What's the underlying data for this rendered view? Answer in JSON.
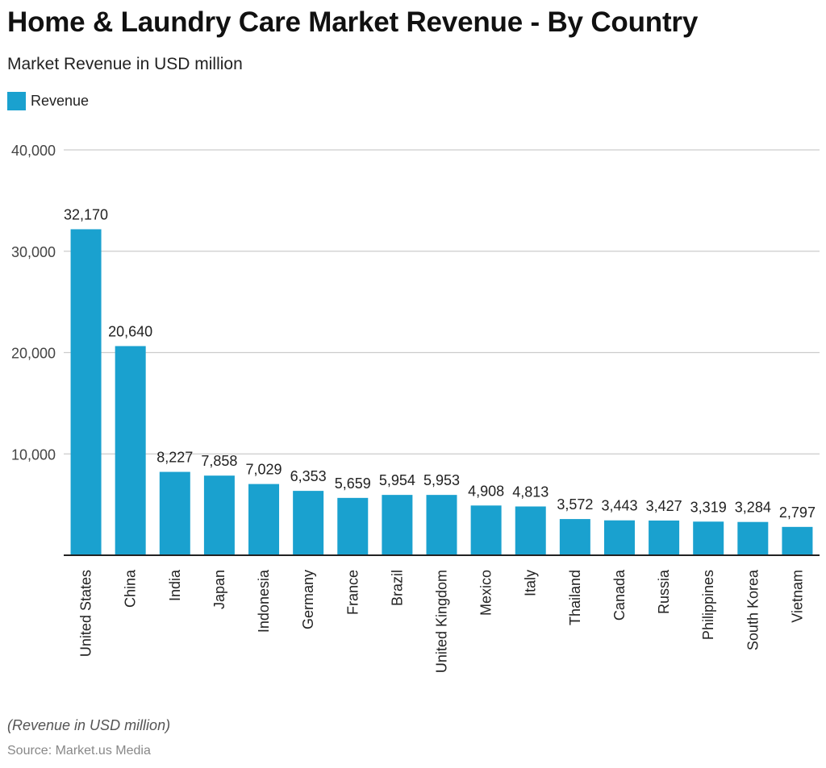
{
  "header": {
    "title": "Home & Laundry Care Market Revenue - By Country",
    "subtitle": "Market Revenue in USD million"
  },
  "footer": {
    "note": "(Revenue in USD million)",
    "source": "Source: Market.us Media"
  },
  "colors": {
    "bar": "#1aa1cf",
    "grid": "#cccccc",
    "axis": "#222222"
  },
  "chart_data": {
    "type": "bar",
    "title": "Home & Laundry Care Market Revenue - By Country",
    "subtitle": "Market Revenue in USD million",
    "xlabel": "",
    "ylabel": "",
    "ylim": [
      0,
      40000
    ],
    "yticks": [
      10000,
      20000,
      30000,
      40000
    ],
    "ytick_labels": [
      "10,000",
      "20,000",
      "30,000",
      "40,000"
    ],
    "grid": true,
    "legend_position": "top-left",
    "categories": [
      "United States",
      "China",
      "India",
      "Japan",
      "Indonesia",
      "Germany",
      "France",
      "Brazil",
      "United Kingdom",
      "Mexico",
      "Italy",
      "Thailand",
      "Canada",
      "Russia",
      "Philippines",
      "South Korea",
      "Vietnam"
    ],
    "series": [
      {
        "name": "Revenue",
        "values": [
          32170,
          20640,
          8227,
          7858,
          7029,
          6353,
          5659,
          5954,
          5953,
          4908,
          4813,
          3572,
          3443,
          3427,
          3319,
          3284,
          2797
        ],
        "labels": [
          "32,170",
          "20,640",
          "8,227",
          "7,858",
          "7,029",
          "6,353",
          "5,659",
          "5,954",
          "5,953",
          "4,908",
          "4,813",
          "3,572",
          "3,443",
          "3,427",
          "3,319",
          "3,284",
          "2,797"
        ]
      }
    ]
  }
}
